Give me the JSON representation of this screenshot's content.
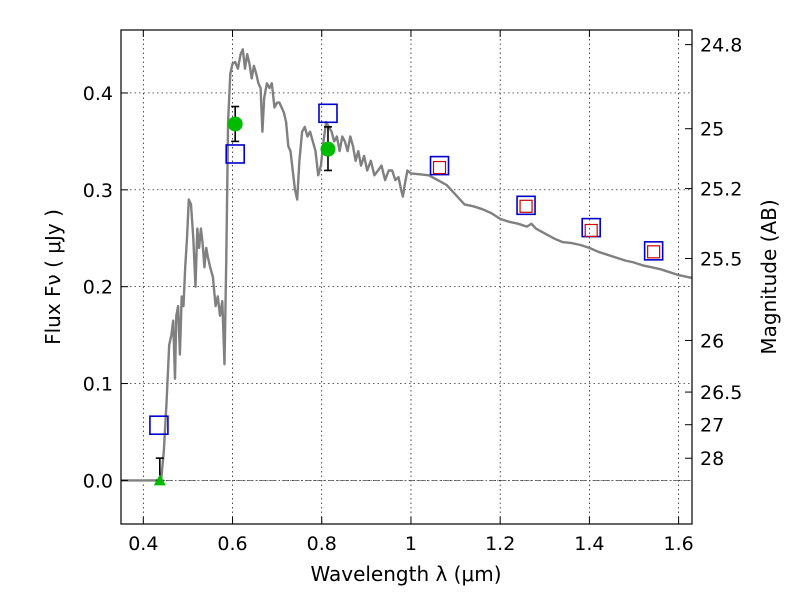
{
  "chart_data": {
    "type": "line",
    "xlabel": "Wavelength  λ (μm)",
    "ylabel": "Flux  Fν  ( μJy )",
    "y2label": "Magnitude (AB)",
    "xlim": [
      0.35,
      1.63
    ],
    "ylim": [
      -0.045,
      0.465
    ],
    "grid": true,
    "x_ticks": [
      {
        "value": 0.4,
        "label": "0.4"
      },
      {
        "value": 0.6,
        "label": "0.6"
      },
      {
        "value": 0.8,
        "label": "0.8"
      },
      {
        "value": 1.0,
        "label": "1"
      },
      {
        "value": 1.2,
        "label": "1.2"
      },
      {
        "value": 1.4,
        "label": "1.4"
      },
      {
        "value": 1.6,
        "label": "1.6"
      }
    ],
    "y_ticks": [
      {
        "value": 0.0,
        "label": "0.0"
      },
      {
        "value": 0.1,
        "label": "0.1"
      },
      {
        "value": 0.2,
        "label": "0.2"
      },
      {
        "value": 0.3,
        "label": "0.3"
      },
      {
        "value": 0.4,
        "label": "0.4"
      }
    ],
    "y2_ticks": [
      {
        "flux": 0.4499,
        "label": "24.8"
      },
      {
        "flux": 0.3631,
        "label": "25"
      },
      {
        "flux": 0.3013,
        "label": "25.2"
      },
      {
        "flux": 0.2291,
        "label": "25.5"
      },
      {
        "flux": 0.1445,
        "label": "26"
      },
      {
        "flux": 0.0912,
        "label": "26.5"
      },
      {
        "flux": 0.0575,
        "label": "27"
      },
      {
        "flux": 0.0229,
        "label": "28"
      }
    ],
    "colors": {
      "model": "#808080",
      "model_photometry": "#0000cc",
      "observed_green": "#00bb00",
      "observed_red": "#cc0000",
      "errorbar": "#000000",
      "zero_line": "#555555"
    },
    "series": [
      {
        "type": "line",
        "points": [
          [
            0.35,
            0.0
          ],
          [
            0.44,
            0.0
          ],
          [
            0.446,
            0.03
          ],
          [
            0.452,
            0.08
          ],
          [
            0.458,
            0.14
          ],
          [
            0.463,
            0.15
          ],
          [
            0.467,
            0.165
          ],
          [
            0.471,
            0.105
          ],
          [
            0.474,
            0.17
          ],
          [
            0.478,
            0.18
          ],
          [
            0.482,
            0.13
          ],
          [
            0.486,
            0.19
          ],
          [
            0.49,
            0.18
          ],
          [
            0.494,
            0.22
          ],
          [
            0.498,
            0.25
          ],
          [
            0.502,
            0.29
          ],
          [
            0.507,
            0.285
          ],
          [
            0.512,
            0.25
          ],
          [
            0.517,
            0.2
          ],
          [
            0.521,
            0.26
          ],
          [
            0.525,
            0.24
          ],
          [
            0.529,
            0.26
          ],
          [
            0.533,
            0.245
          ],
          [
            0.537,
            0.22
          ],
          [
            0.541,
            0.24
          ],
          [
            0.545,
            0.23
          ],
          [
            0.55,
            0.22
          ],
          [
            0.556,
            0.21
          ],
          [
            0.562,
            0.18
          ],
          [
            0.567,
            0.19
          ],
          [
            0.572,
            0.17
          ],
          [
            0.577,
            0.185
          ],
          [
            0.582,
            0.12
          ],
          [
            0.586,
            0.23
          ],
          [
            0.59,
            0.37
          ],
          [
            0.595,
            0.42
          ],
          [
            0.6,
            0.43
          ],
          [
            0.606,
            0.432
          ],
          [
            0.612,
            0.425
          ],
          [
            0.618,
            0.44
          ],
          [
            0.623,
            0.445
          ],
          [
            0.628,
            0.425
          ],
          [
            0.633,
            0.44
          ],
          [
            0.638,
            0.43
          ],
          [
            0.643,
            0.415
          ],
          [
            0.648,
            0.428
          ],
          [
            0.653,
            0.42
          ],
          [
            0.658,
            0.41
          ],
          [
            0.663,
            0.405
          ],
          [
            0.667,
            0.36
          ],
          [
            0.671,
            0.395
          ],
          [
            0.677,
            0.41
          ],
          [
            0.683,
            0.405
          ],
          [
            0.688,
            0.41
          ],
          [
            0.694,
            0.385
          ],
          [
            0.7,
            0.39
          ],
          [
            0.705,
            0.39
          ],
          [
            0.71,
            0.385
          ],
          [
            0.715,
            0.38
          ],
          [
            0.72,
            0.37
          ],
          [
            0.725,
            0.345
          ],
          [
            0.73,
            0.34
          ],
          [
            0.735,
            0.32
          ],
          [
            0.74,
            0.3
          ],
          [
            0.745,
            0.29
          ],
          [
            0.75,
            0.33
          ],
          [
            0.756,
            0.36
          ],
          [
            0.762,
            0.365
          ],
          [
            0.768,
            0.355
          ],
          [
            0.774,
            0.36
          ],
          [
            0.78,
            0.35
          ],
          [
            0.786,
            0.34
          ],
          [
            0.792,
            0.315
          ],
          [
            0.798,
            0.325
          ],
          [
            0.804,
            0.35
          ],
          [
            0.81,
            0.37
          ],
          [
            0.816,
            0.365
          ],
          [
            0.822,
            0.36
          ],
          [
            0.828,
            0.35
          ],
          [
            0.834,
            0.355
          ],
          [
            0.84,
            0.34
          ],
          [
            0.846,
            0.355
          ],
          [
            0.852,
            0.35
          ],
          [
            0.858,
            0.34
          ],
          [
            0.864,
            0.355
          ],
          [
            0.87,
            0.345
          ],
          [
            0.876,
            0.33
          ],
          [
            0.882,
            0.34
          ],
          [
            0.888,
            0.325
          ],
          [
            0.895,
            0.335
          ],
          [
            0.902,
            0.32
          ],
          [
            0.91,
            0.33
          ],
          [
            0.918,
            0.315
          ],
          [
            0.926,
            0.32
          ],
          [
            0.934,
            0.325
          ],
          [
            0.942,
            0.31
          ],
          [
            0.95,
            0.32
          ],
          [
            0.958,
            0.32
          ],
          [
            0.965,
            0.31
          ],
          [
            0.972,
            0.313
          ],
          [
            0.978,
            0.3
          ],
          [
            0.982,
            0.293
          ],
          [
            0.986,
            0.305
          ],
          [
            0.992,
            0.32
          ],
          [
            1.0,
            0.317
          ],
          [
            1.02,
            0.316
          ],
          [
            1.04,
            0.315
          ],
          [
            1.06,
            0.31
          ],
          [
            1.08,
            0.305
          ],
          [
            1.1,
            0.295
          ],
          [
            1.12,
            0.285
          ],
          [
            1.14,
            0.283
          ],
          [
            1.16,
            0.28
          ],
          [
            1.18,
            0.276
          ],
          [
            1.2,
            0.27
          ],
          [
            1.22,
            0.267
          ],
          [
            1.24,
            0.265
          ],
          [
            1.26,
            0.262
          ],
          [
            1.27,
            0.265
          ],
          [
            1.28,
            0.26
          ],
          [
            1.3,
            0.255
          ],
          [
            1.32,
            0.25
          ],
          [
            1.34,
            0.246
          ],
          [
            1.36,
            0.245
          ],
          [
            1.38,
            0.243
          ],
          [
            1.4,
            0.24
          ],
          [
            1.42,
            0.236
          ],
          [
            1.44,
            0.233
          ],
          [
            1.46,
            0.23
          ],
          [
            1.48,
            0.227
          ],
          [
            1.5,
            0.225
          ],
          [
            1.52,
            0.222
          ],
          [
            1.54,
            0.22
          ],
          [
            1.56,
            0.218
          ],
          [
            1.58,
            0.215
          ],
          [
            1.6,
            0.212
          ],
          [
            1.63,
            0.209
          ]
        ]
      },
      {
        "type": "scatter",
        "marker": "square-open",
        "points": [
          [
            0.435,
            0.057
          ],
          [
            0.606,
            0.337
          ],
          [
            0.814,
            0.379
          ],
          [
            1.064,
            0.325
          ],
          [
            1.258,
            0.284
          ],
          [
            1.404,
            0.261
          ],
          [
            1.544,
            0.237
          ]
        ]
      },
      {
        "type": "scatter",
        "marker": "square-open-small",
        "points": [
          [
            1.064,
            0.323
          ],
          [
            1.258,
            0.283
          ],
          [
            1.404,
            0.258
          ],
          [
            1.544,
            0.236
          ]
        ]
      },
      {
        "type": "scatter",
        "marker": "circle",
        "points": [
          {
            "x": 0.606,
            "y": 0.368,
            "ylow": 0.35,
            "yhigh": 0.386
          },
          {
            "x": 0.814,
            "y": 0.342,
            "ylow": 0.32,
            "yhigh": 0.365
          }
        ]
      },
      {
        "type": "scatter",
        "marker": "triangle",
        "points": [
          {
            "x": 0.437,
            "y": 0.0,
            "ylow": 0.0,
            "yhigh": 0.023
          }
        ]
      }
    ]
  }
}
